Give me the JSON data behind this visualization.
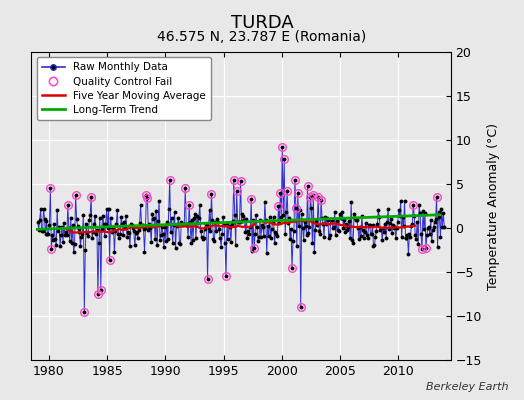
{
  "title": "TURDA",
  "subtitle": "46.575 N, 23.787 E (Romania)",
  "ylabel": "Temperature Anomaly (°C)",
  "watermark": "Berkeley Earth",
  "xlim": [
    1978.5,
    2014.5
  ],
  "ylim": [
    -15,
    20
  ],
  "yticks": [
    -15,
    -10,
    -5,
    0,
    5,
    10,
    15,
    20
  ],
  "xticks": [
    1980,
    1985,
    1990,
    1995,
    2000,
    2005,
    2010
  ],
  "background_color": "#e8e8e8",
  "plot_bg_color": "#e8e8e8",
  "grid_color": "#ffffff",
  "raw_color": "#3030d0",
  "raw_marker_color": "#000000",
  "qc_color": "#ff44cc",
  "moving_avg_color": "#dd0000",
  "trend_color": "#00aa00",
  "title_fontsize": 13,
  "subtitle_fontsize": 10,
  "tick_fontsize": 9,
  "ylabel_fontsize": 9,
  "legend_fontsize": 7.5,
  "seed": 42,
  "start_year": 1979,
  "end_year": 2013
}
